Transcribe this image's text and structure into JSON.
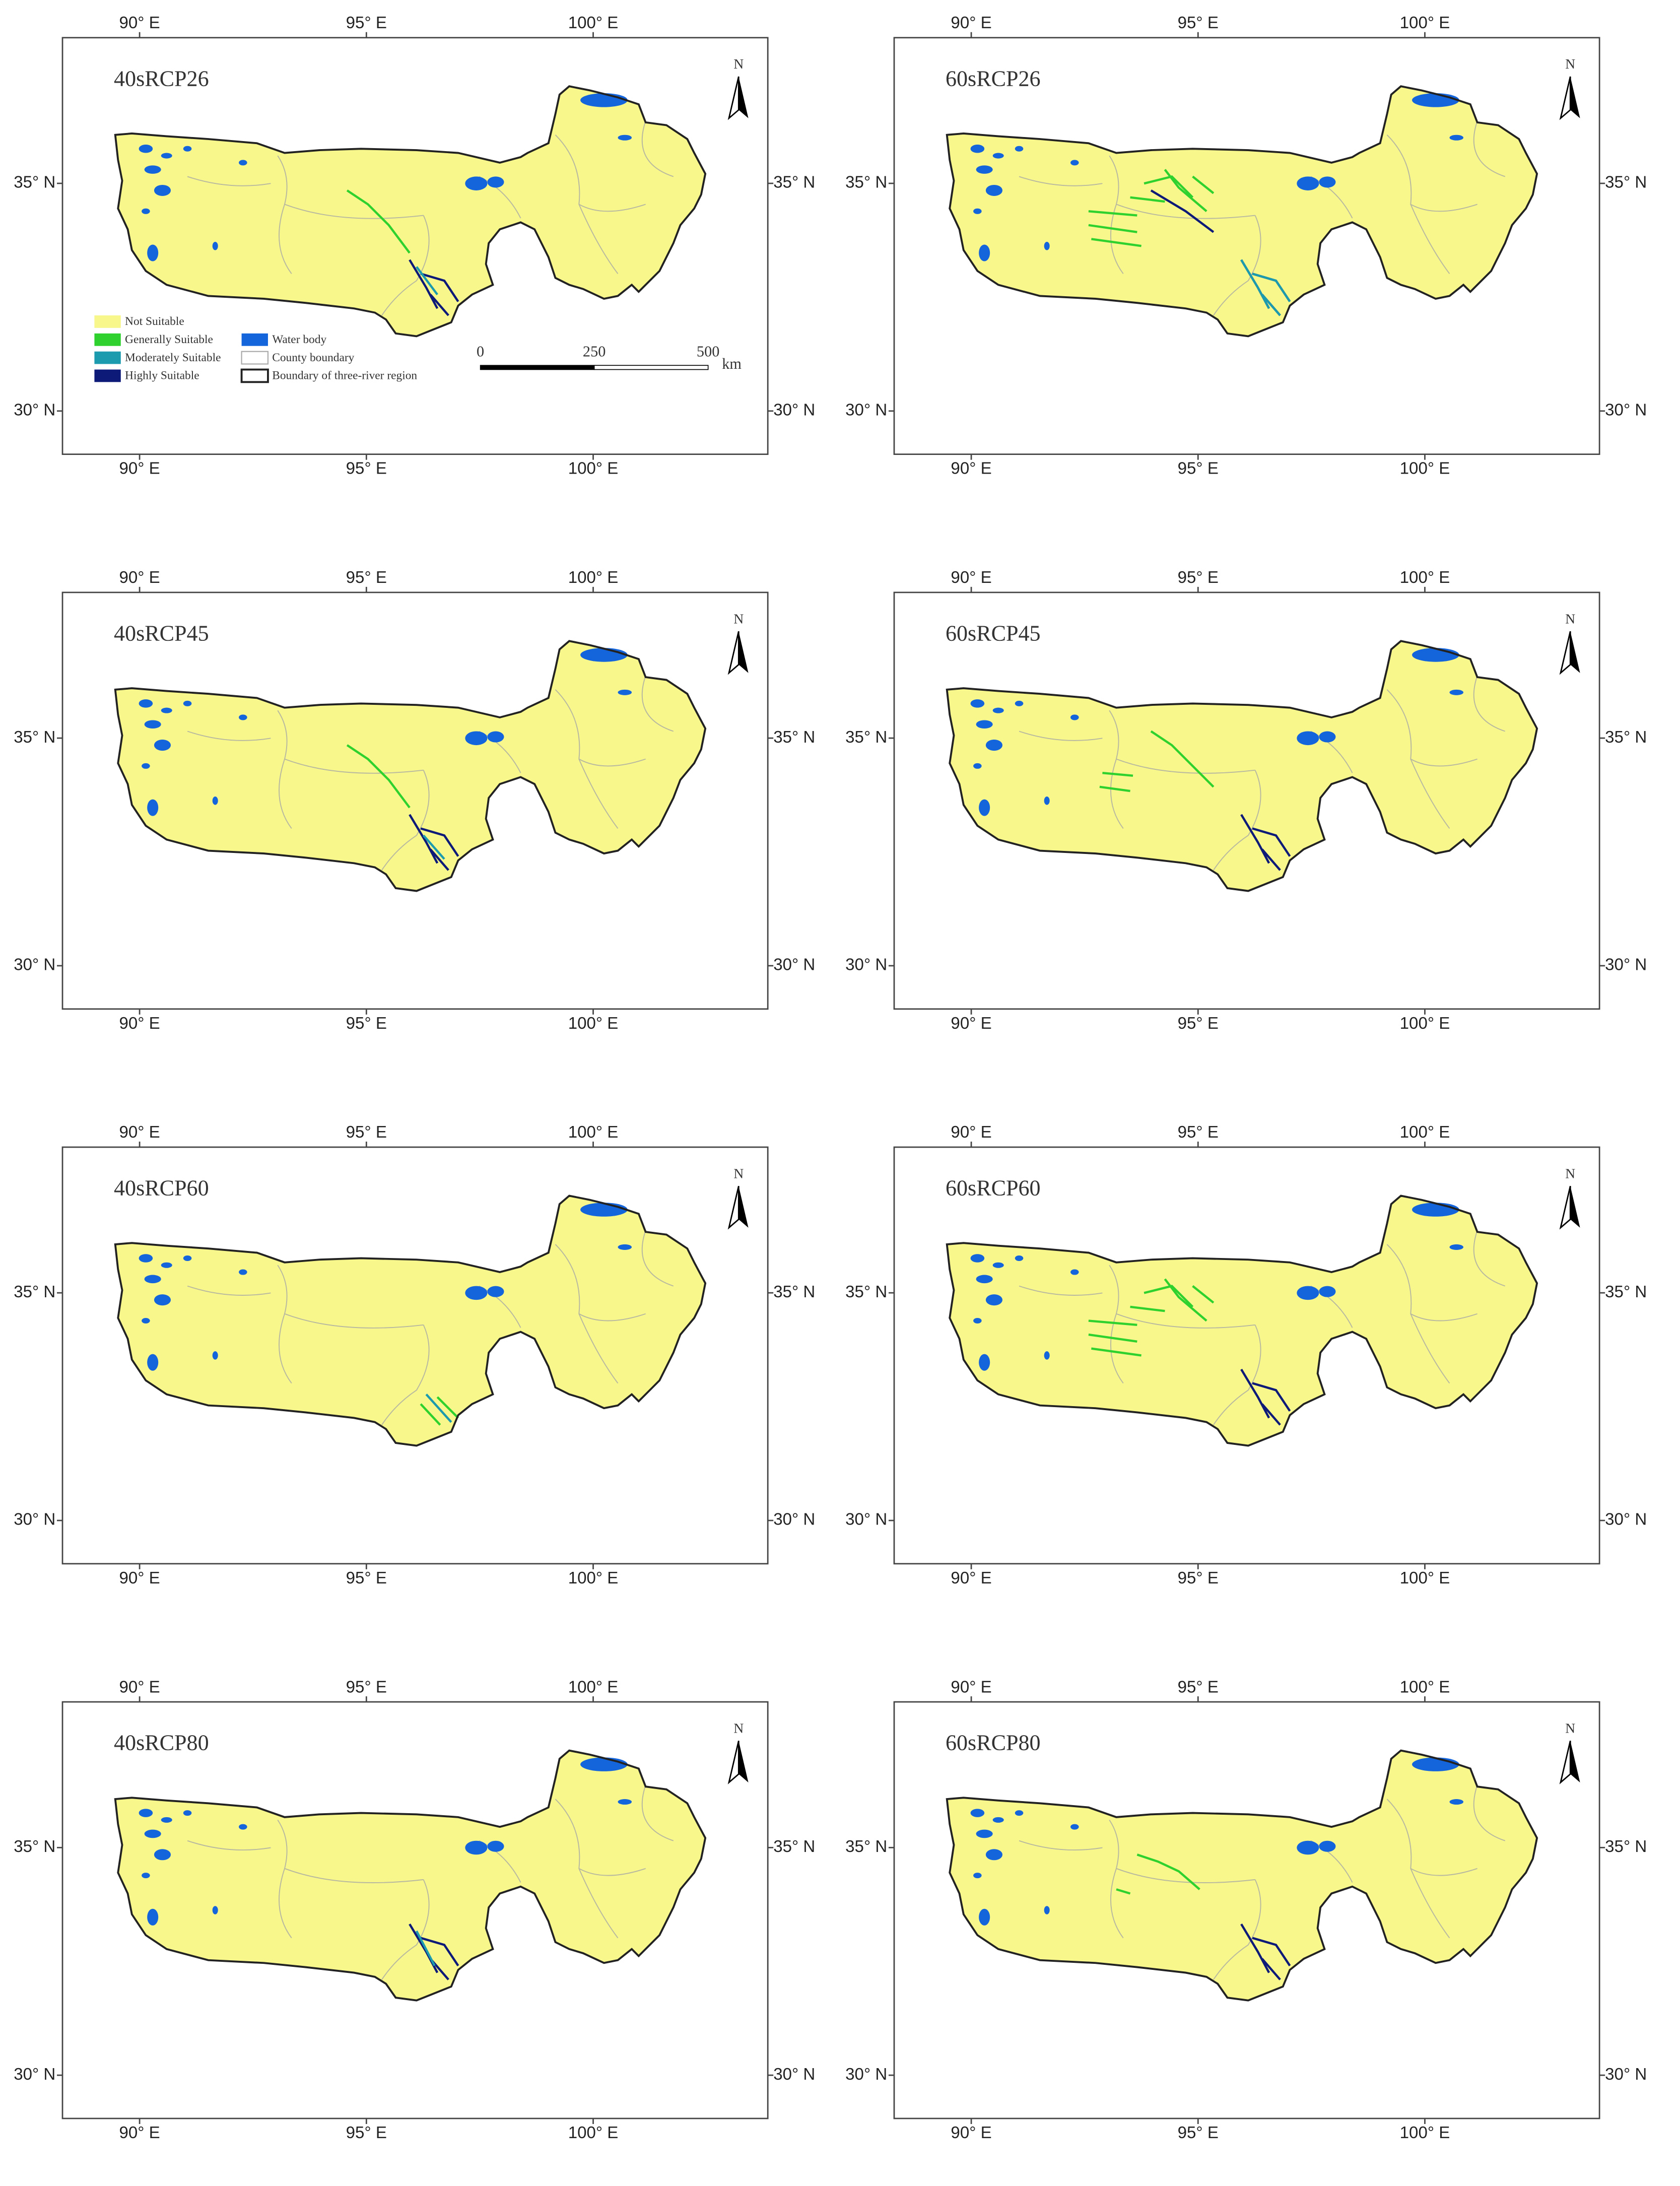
{
  "axes": {
    "xlim": [
      88.3,
      103.85
    ],
    "ylim": [
      29.05,
      38.2
    ],
    "xticks": [
      {
        "value": 90,
        "label": "90° E"
      },
      {
        "value": 95,
        "label": "95° E"
      },
      {
        "value": 100,
        "label": "100° E"
      }
    ],
    "yticks": [
      {
        "value": 30,
        "label": "30° N"
      },
      {
        "value": 35,
        "label": "35° N"
      }
    ]
  },
  "north_label": "N",
  "panels": [
    {
      "title": "40sRCP26"
    },
    {
      "title": "60sRCP26"
    },
    {
      "title": "40sRCP45"
    },
    {
      "title": "60sRCP45"
    },
    {
      "title": "40sRCP60"
    },
    {
      "title": "60sRCP60"
    },
    {
      "title": "40sRCP80"
    },
    {
      "title": "60sRCP80"
    }
  ],
  "legend": {
    "items": [
      {
        "label": "Not Suitable",
        "color": "#f7f78c"
      },
      {
        "label": "Generally Suitable",
        "color": "#2fd12f"
      },
      {
        "label": "Moderately Suitable",
        "color": "#1c9aae"
      },
      {
        "label": "Highly Suitable",
        "color": "#0d1a78"
      },
      {
        "label": "Water body",
        "color": "#1464dc"
      },
      {
        "label": "County boundary",
        "color": "#ffffff"
      },
      {
        "label": "Boundary of three-river region",
        "color": "#ffffff"
      }
    ]
  },
  "scale_bar": {
    "labels": [
      0,
      250,
      500
    ],
    "unit": "km"
  }
}
